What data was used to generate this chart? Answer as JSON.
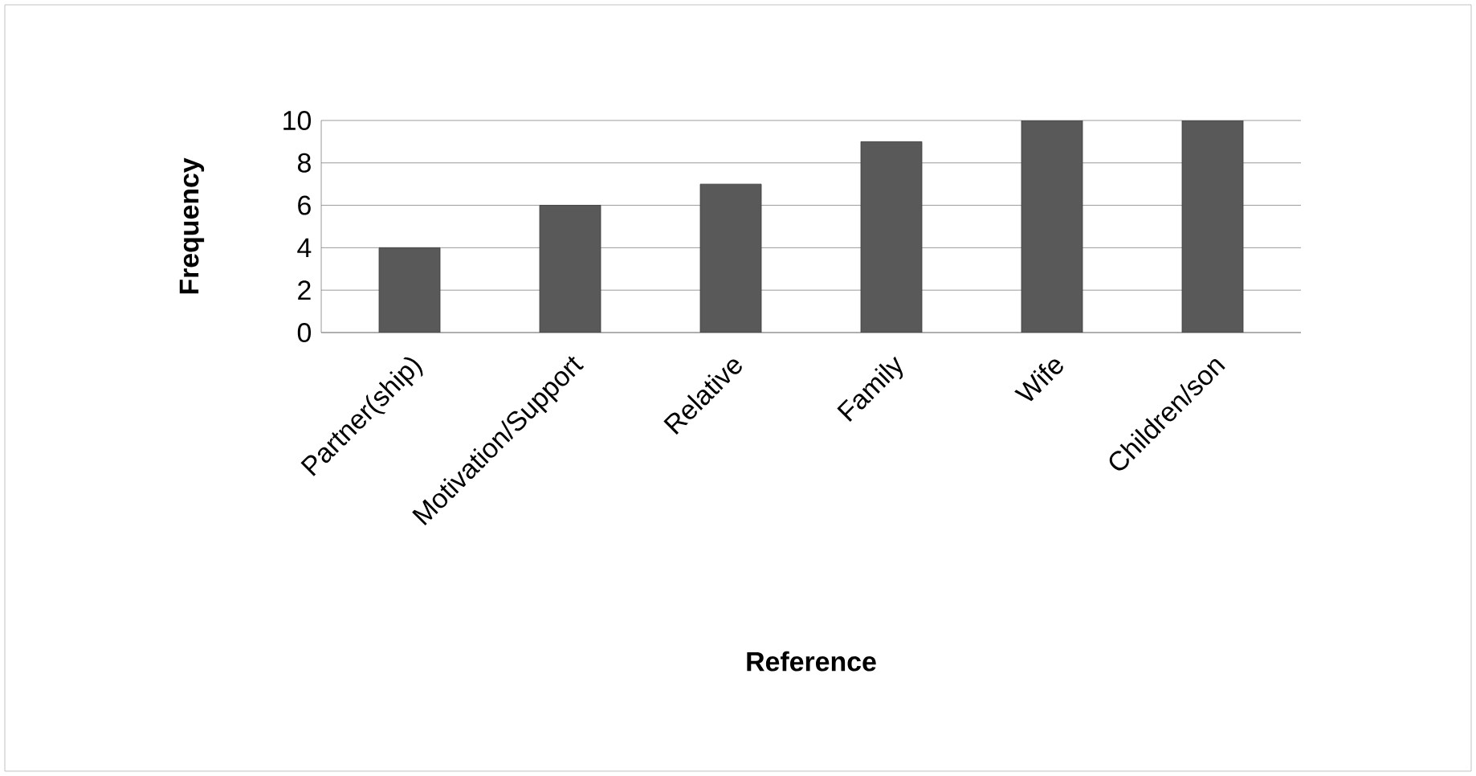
{
  "chart_data": {
    "type": "bar",
    "xlabel": "Reference",
    "ylabel": "Frequency",
    "categories": [
      "Partner(ship)",
      "Motivation/Support",
      "Relative",
      "Family",
      "Wife",
      "Children/son"
    ],
    "values": [
      4,
      6,
      7,
      9,
      10,
      10
    ],
    "color": "#595959",
    "ylim": [
      0,
      10
    ],
    "yticks": [
      0,
      2,
      4,
      6,
      8,
      10
    ],
    "grid": "y"
  }
}
